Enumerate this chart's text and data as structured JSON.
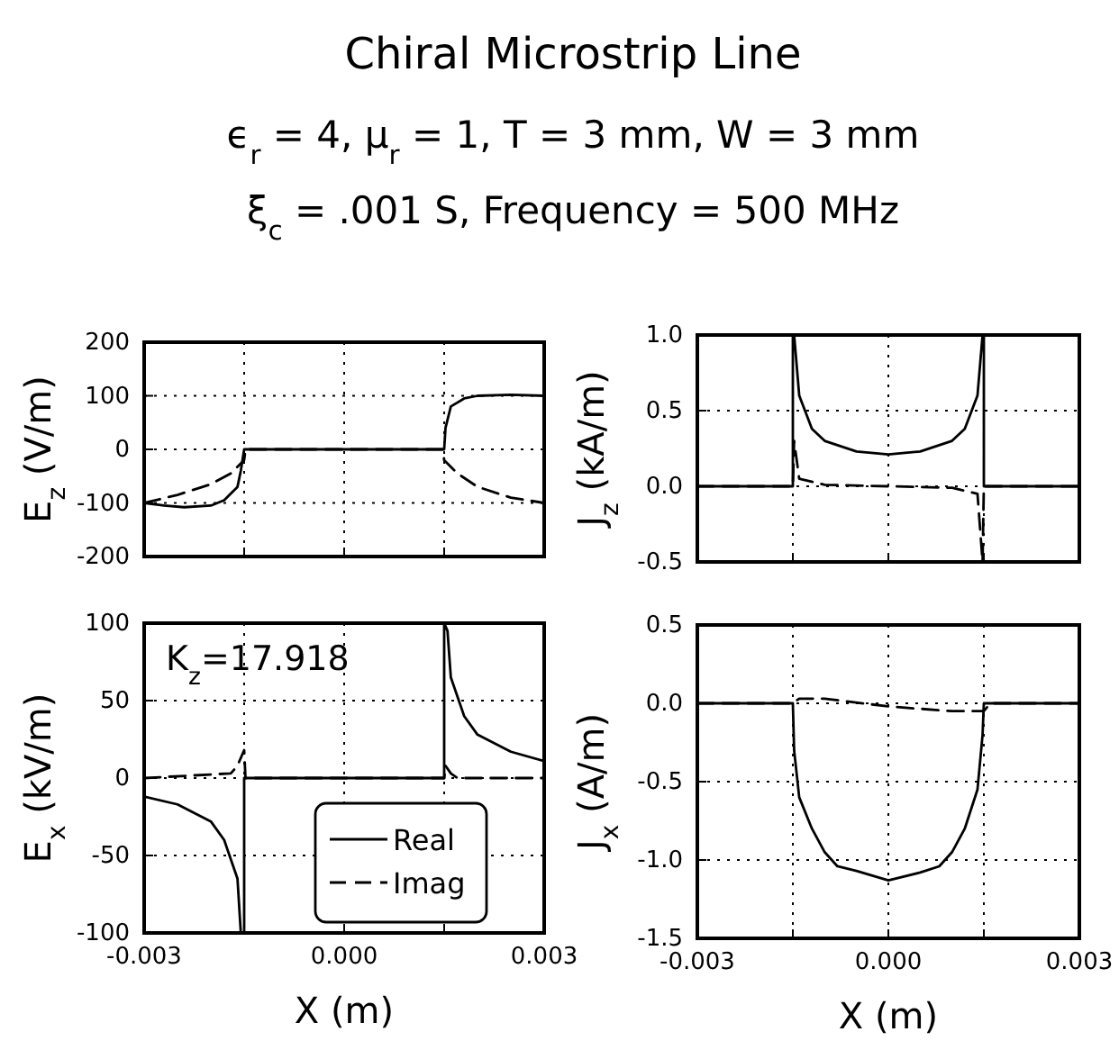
{
  "chart_data": [
    {
      "type": "line",
      "title": "Chiral Microstrip Line",
      "subtitle": "ϵ$_{r}$ = 4,  μ$_{r}$ = 1,  T = 3 mm,  W = 3 mm\nξ$_{c}$ = .001 S,  Frequency = 500 MHz",
      "ylabel": "E$_{z}$ (V/m)",
      "xlim": [
        -0.003,
        0.003
      ],
      "xticks": [
        {
          "value": -0.003,
          "label": null
        },
        {
          "value": -0.0015,
          "label": null
        },
        {
          "value": 0,
          "label": null
        },
        {
          "value": 0.0015,
          "label": null
        },
        {
          "value": 0.003,
          "label": null
        }
      ],
      "ylim": [
        -200,
        200
      ],
      "yticks": [
        -200,
        -100,
        0,
        100,
        200
      ],
      "tick_labels": "y",
      "grid": true,
      "series": [
        {
          "color": "#000000",
          "line_style": "solid",
          "x": [
            -0.003,
            -0.0027,
            -0.0024,
            -0.002,
            -0.0018,
            -0.0016,
            -0.00155,
            -0.0015,
            0,
            0.0015,
            0.00152,
            0.0016,
            0.0018,
            0.002,
            0.0025,
            0.003
          ],
          "values": [
            -100,
            -105,
            -108,
            -105,
            -95,
            -70,
            -40,
            0,
            0,
            0,
            40,
            80,
            95,
            100,
            102,
            100
          ]
        },
        {
          "color": "#000000",
          "line_style": "dashed",
          "x": [
            -0.003,
            -0.0025,
            -0.002,
            -0.0017,
            -0.0015,
            -0.00148,
            0,
            0.00148,
            0.0015,
            0.0017,
            0.002,
            0.0025,
            0.003
          ],
          "values": [
            -100,
            -85,
            -65,
            -45,
            -20,
            0,
            0,
            0,
            -20,
            -45,
            -70,
            -90,
            -100
          ]
        }
      ]
    },
    {
      "type": "line",
      "ylabel": "J$_{z}$ (kA/m)",
      "xlim": [
        -0.003,
        0.003
      ],
      "xticks": [
        {
          "value": -0.003,
          "label": null
        },
        {
          "value": -0.0015,
          "label": null
        },
        {
          "value": 0,
          "label": null
        },
        {
          "value": 0.0015,
          "label": null
        },
        {
          "value": 0.003,
          "label": null
        }
      ],
      "ylim": [
        -0.5,
        1.0
      ],
      "yticks": [
        {
          "value": -0.5,
          "label": "-0.5"
        },
        {
          "value": 0,
          "label": "0.0"
        },
        {
          "value": 0.5,
          "label": "0.5"
        },
        {
          "value": 1.0,
          "label": "1.0"
        }
      ],
      "tick_labels": "y",
      "grid": true,
      "series": [
        {
          "color": "#000000",
          "line_style": "solid",
          "x": [
            -0.003,
            -0.0015,
            -0.0015,
            -0.00148,
            -0.0014,
            -0.0012,
            -0.001,
            -0.0005,
            0,
            0.0005,
            0.001,
            0.0012,
            0.0014,
            0.00148,
            0.0015,
            0.0015,
            0.003
          ],
          "values": [
            0,
            0,
            1.0,
            1.0,
            0.6,
            0.38,
            0.3,
            0.23,
            0.21,
            0.23,
            0.3,
            0.38,
            0.6,
            1.0,
            1.0,
            0,
            0
          ]
        },
        {
          "color": "#000000",
          "line_style": "dashed",
          "x": [
            -0.003,
            -0.0015,
            -0.00148,
            -0.0014,
            -0.001,
            0,
            0.001,
            0.0014,
            0.00148,
            0.0015,
            0.003
          ],
          "values": [
            0,
            0,
            0.3,
            0.05,
            0.01,
            0,
            -0.01,
            -0.05,
            -0.5,
            0,
            0
          ]
        }
      ]
    },
    {
      "type": "line",
      "ylabel": "E$_{x}$ (kV/m)",
      "xlabel": "X (m)",
      "annotations": [
        "K$_{z}$=17.918"
      ],
      "legend": "bottom right",
      "xlim": [
        -0.003,
        0.003
      ],
      "xticks": [
        {
          "value": -0.003,
          "label": "-0.003"
        },
        {
          "value": -0.0015,
          "label": null
        },
        {
          "value": 0,
          "label": "0.000"
        },
        {
          "value": 0.0015,
          "label": null
        },
        {
          "value": 0.003,
          "label": "0.003"
        }
      ],
      "ylim": [
        -100,
        100
      ],
      "yticks": [
        -100,
        -50,
        0,
        50,
        100
      ],
      "grid": true,
      "series": [
        {
          "name": "Real",
          "color": "#000000",
          "line_style": "solid",
          "x": [
            -0.003,
            -0.0025,
            -0.002,
            -0.0018,
            -0.0016,
            -0.00155,
            -0.0015,
            -0.0015,
            0,
            0.0015,
            0.0015,
            0.00155,
            0.0016,
            0.0018,
            0.002,
            0.0025,
            0.003
          ],
          "values": [
            -12,
            -17,
            -28,
            -40,
            -65,
            -100,
            -100,
            0,
            0,
            0,
            100,
            95,
            65,
            40,
            28,
            17,
            11
          ]
        },
        {
          "name": "Imag",
          "color": "#000000",
          "line_style": "dashed",
          "x": [
            -0.003,
            -0.0017,
            -0.0016,
            -0.0015,
            -0.00148,
            0,
            0.0015,
            0.00152,
            0.0016,
            0.0017,
            0.003
          ],
          "values": [
            0,
            3,
            8,
            18,
            0,
            0,
            0,
            8,
            3,
            0,
            0
          ]
        }
      ]
    },
    {
      "type": "line",
      "ylabel": "J$_{x}$ (A/m)",
      "xlabel": "X (m)",
      "xlim": [
        -0.003,
        0.003
      ],
      "xticks": [
        {
          "value": -0.003,
          "label": "-0.003"
        },
        {
          "value": -0.0015,
          "label": null
        },
        {
          "value": 0,
          "label": "0.000"
        },
        {
          "value": 0.0015,
          "label": null
        },
        {
          "value": 0.003,
          "label": "0.003"
        }
      ],
      "ylim": [
        -1.5,
        0.5
      ],
      "yticks": [
        {
          "value": -1.5,
          "label": "-1.5"
        },
        {
          "value": -1.0,
          "label": "-1.0"
        },
        {
          "value": -0.5,
          "label": "-0.5"
        },
        {
          "value": 0,
          "label": "0.0"
        },
        {
          "value": 0.5,
          "label": "0.5"
        }
      ],
      "grid": true,
      "series": [
        {
          "color": "#000000",
          "line_style": "solid",
          "x": [
            -0.003,
            -0.0015,
            -0.00148,
            -0.0014,
            -0.0012,
            -0.001,
            -0.0008,
            -0.0005,
            0,
            0.0005,
            0.0008,
            0.001,
            0.0012,
            0.0014,
            0.00148,
            0.0015,
            0.003
          ],
          "values": [
            0,
            0,
            -0.3,
            -0.6,
            -0.8,
            -0.95,
            -1.04,
            -1.07,
            -1.13,
            -1.08,
            -1.04,
            -0.95,
            -0.8,
            -0.55,
            -0.2,
            0,
            0
          ]
        },
        {
          "color": "#000000",
          "line_style": "dashed",
          "x": [
            -0.003,
            -0.0015,
            -0.0014,
            -0.001,
            0,
            0.001,
            0.0015,
            0.0016,
            0.003
          ],
          "values": [
            0,
            0,
            0.03,
            0.03,
            -0.02,
            -0.05,
            -0.05,
            0,
            0
          ]
        }
      ]
    }
  ]
}
